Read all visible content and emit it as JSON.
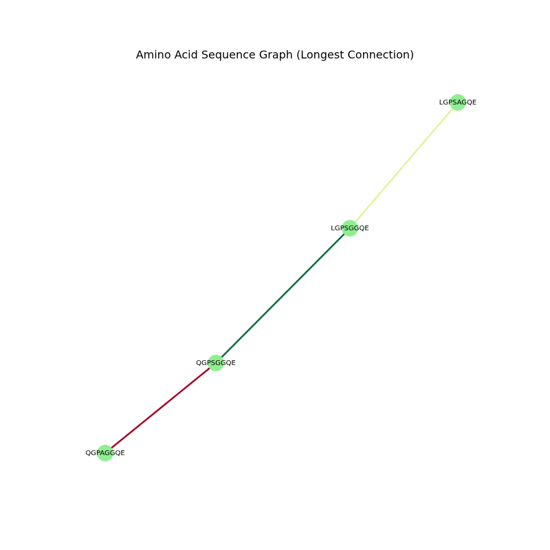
{
  "title": "Amino Acid Sequence Graph (Longest Connection)",
  "node_color": "#90ee90",
  "nodes": [
    {
      "id": "n1",
      "label": "LGPSAGQE"
    },
    {
      "id": "n2",
      "label": "LGPSGGQE"
    },
    {
      "id": "n3",
      "label": "QGPSGGQE"
    },
    {
      "id": "n4",
      "label": "QGPAGGQE"
    }
  ],
  "edges": [
    {
      "from": "n1",
      "to": "n2",
      "color": "#e3f29b"
    },
    {
      "from": "n2",
      "to": "n3",
      "color": "#066b38"
    },
    {
      "from": "n3",
      "to": "n4",
      "color": "#a50026"
    }
  ]
}
